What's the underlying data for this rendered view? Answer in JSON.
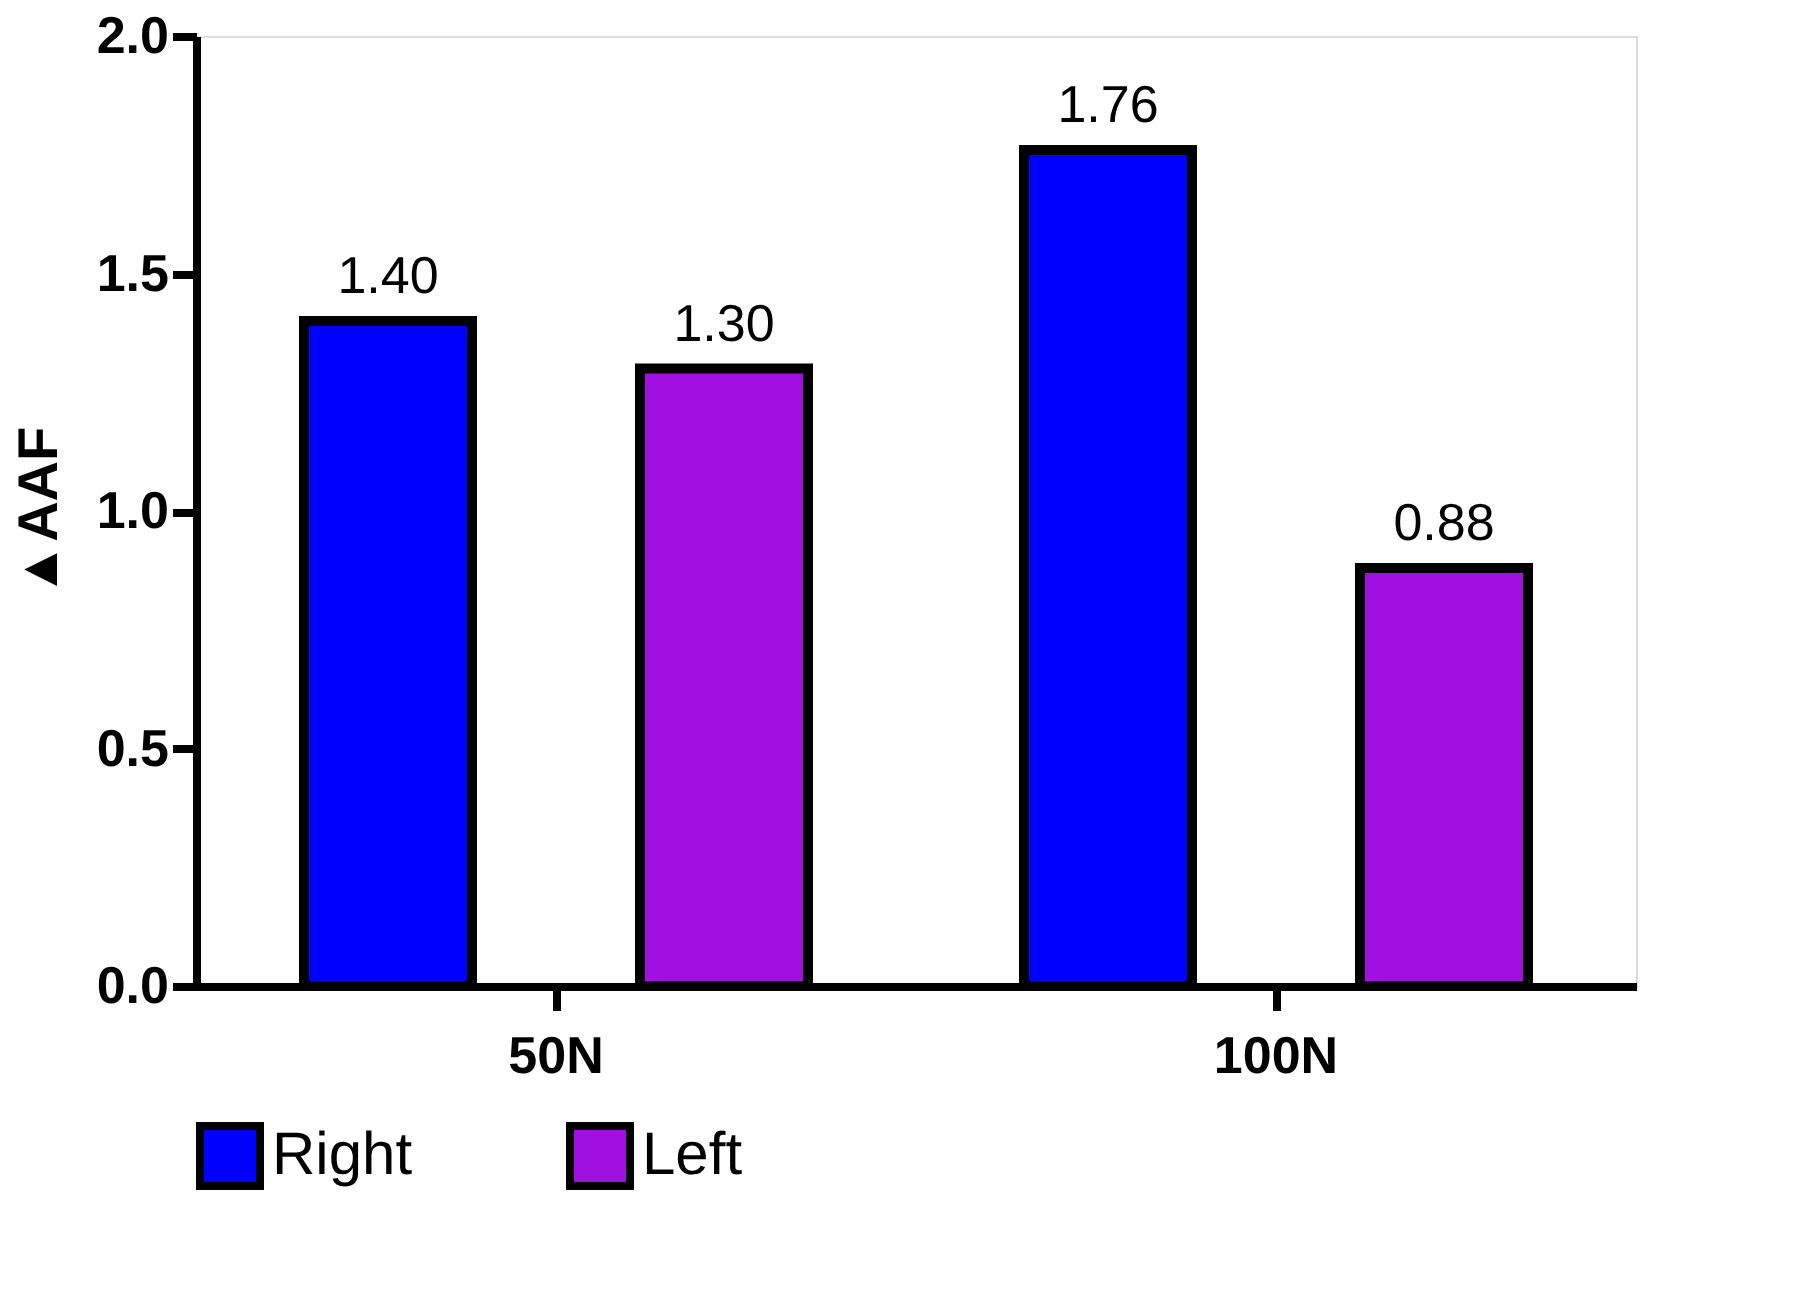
{
  "chart_data": {
    "type": "bar",
    "ylabel": "▲AAF",
    "categories": [
      "50N",
      "100N"
    ],
    "series": [
      {
        "name": "Right",
        "color": "#0000ff",
        "values": [
          1.4,
          1.76
        ],
        "value_labels": [
          "1.40",
          "1.76"
        ]
      },
      {
        "name": "Left",
        "color": "#a010e0",
        "values": [
          1.3,
          0.88
        ],
        "value_labels": [
          "1.30",
          "0.88"
        ]
      }
    ],
    "ylim": [
      0,
      2.0
    ],
    "yticks": [
      {
        "value": 0,
        "label": "0.0"
      },
      {
        "value": 0.5,
        "label": "0.5"
      },
      {
        "value": 1.0,
        "label": "1.0"
      },
      {
        "value": 1.5,
        "label": "1.5"
      },
      {
        "value": 2.0,
        "label": "2.0"
      }
    ],
    "grid": false,
    "legend": "bottom"
  }
}
